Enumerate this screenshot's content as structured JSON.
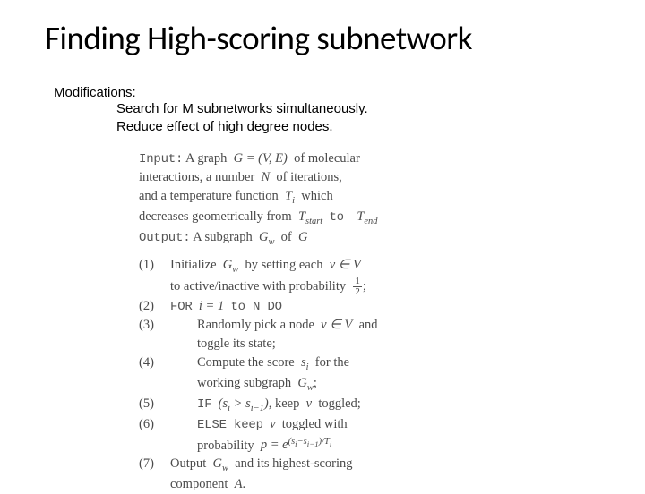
{
  "title": "Finding High-scoring subnetwork",
  "modifications": {
    "label": "Modifications:",
    "lines": [
      "Search for M subnetworks simultaneously.",
      "Reduce effect of high degree nodes."
    ]
  },
  "algorithm": {
    "input_label": "Input:",
    "input_l1": "A graph",
    "input_g": "G = (V, E)",
    "input_l1b": "of molecular",
    "input_l2": "interactions, a number",
    "input_n": "N",
    "input_l2b": "of iterations,",
    "input_l3": "and a temperature function",
    "input_ti": "T",
    "input_ti_sub": "i",
    "input_l3b": "which",
    "input_l4": "decreases geometrically from",
    "input_tstart": "T",
    "input_tstart_sub": "start",
    "input_to": "to",
    "input_tend": "T",
    "input_tend_sub": "end",
    "output_label": "Output:",
    "output_l1": "A subgraph",
    "output_gw": "G",
    "output_gw_sub": "w",
    "output_l1b": "of",
    "output_g2": "G",
    "steps": {
      "s1_num": "(1)",
      "s1a": "Initialize",
      "s1_gw": "G",
      "s1_gw_sub": "w",
      "s1b": "by setting each",
      "s1_v": "v ∈ V",
      "s1c": "to active/inactive with probability",
      "s1_half_n": "1",
      "s1_half_d": "2",
      "s1_semi": ";",
      "s2_num": "(2)",
      "s2a": "FOR",
      "s2_i": "i = 1",
      "s2b": "to N DO",
      "s3_num": "(3)",
      "s3a": "Randomly pick a node",
      "s3_v": "v ∈ V",
      "s3b": "and",
      "s3c": "toggle its state;",
      "s4_num": "(4)",
      "s4a": "Compute the score",
      "s4_si": "s",
      "s4_si_sub": "i",
      "s4b": "for the",
      "s4c": "working subgraph",
      "s4_gw": "G",
      "s4_gw_sub": "w",
      "s4_semi": ";",
      "s5_num": "(5)",
      "s5a": "IF",
      "s5_cond": "(s",
      "s5_i": "i",
      "s5_gt": " > s",
      "s5_im1": "i−1",
      "s5_close": ")",
      "s5b": ", keep",
      "s5_v": "v",
      "s5c": "toggled;",
      "s6_num": "(6)",
      "s6a": "ELSE keep",
      "s6_v": "v",
      "s6b": "toggled with",
      "s6c": "probability",
      "s6_p": "p = e",
      "s6_exp_open": "(s",
      "s6_exp_i": "i",
      "s6_exp_minus": "−s",
      "s6_exp_im1": "i−1",
      "s6_exp_close": ")/T",
      "s6_exp_ti": "i",
      "s7_num": "(7)",
      "s7a": "Output",
      "s7_gw": "G",
      "s7_gw_sub": "w",
      "s7b": "and its highest-scoring",
      "s7c": "component",
      "s7_a": "A",
      "s7_dot": "."
    }
  },
  "colors": {
    "bg": "#ffffff",
    "title": "#000000",
    "body": "#000000",
    "algo_text": "#4a4a4a"
  }
}
